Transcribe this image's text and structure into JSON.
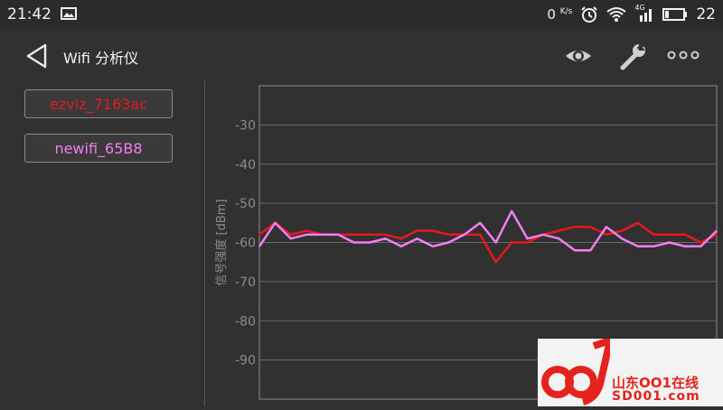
{
  "status_bar": {
    "time": "21:42",
    "speed": "0",
    "speed_unit": "K/s",
    "signal_label": "4G",
    "battery_level": "22",
    "icons": [
      "image-icon",
      "alarm-icon",
      "wifi-icon",
      "cellular-signal-icon",
      "battery-icon"
    ]
  },
  "header": {
    "title": "Wifi 分析仪",
    "icons": [
      "back-icon",
      "eye-icon",
      "wrench-icon",
      "more-icon"
    ]
  },
  "networks": [
    {
      "label": "ezviz_7163ac",
      "color": "#e8191c"
    },
    {
      "label": "newifi_65B8",
      "color": "#f37ef3"
    }
  ],
  "chart_data": {
    "type": "line",
    "title": "",
    "xlabel": "",
    "ylabel": "信号强度 [dBm]",
    "ylim": [
      -100,
      -20
    ],
    "yticks": [
      "-30",
      "-40",
      "-50",
      "-60",
      "-70",
      "-80",
      "-90"
    ],
    "grid": true,
    "x": [
      0,
      1,
      2,
      3,
      4,
      5,
      6,
      7,
      8,
      9,
      10,
      11,
      12,
      13,
      14,
      15,
      16,
      17,
      18,
      19,
      20,
      21,
      22,
      23,
      24,
      25,
      26,
      27,
      28,
      29
    ],
    "series": [
      {
        "name": "ezviz_7163ac",
        "color": "#e8191c",
        "values": [
          -58,
          -55,
          -58,
          -57,
          -58,
          -58,
          -58,
          -58,
          -58,
          -59,
          -57,
          -57,
          -58,
          -58,
          -58,
          -65,
          -60,
          -60,
          -58,
          -57,
          -56,
          -56,
          -58,
          -57,
          -55,
          -58,
          -58,
          -58,
          -60,
          -58
        ]
      },
      {
        "name": "newifi_65B8",
        "color": "#f37ef3",
        "values": [
          -61,
          -55,
          -59,
          -58,
          -58,
          -58,
          -60,
          -60,
          -59,
          -61,
          -59,
          -61,
          -60,
          -58,
          -55,
          -60,
          -52,
          -59,
          -58,
          -59,
          -62,
          -62,
          -56,
          -59,
          -61,
          -61,
          -60,
          -61,
          -61,
          -57
        ]
      }
    ]
  },
  "watermark": {
    "text": "山东OO1在线",
    "subtext": "SD001.com"
  }
}
